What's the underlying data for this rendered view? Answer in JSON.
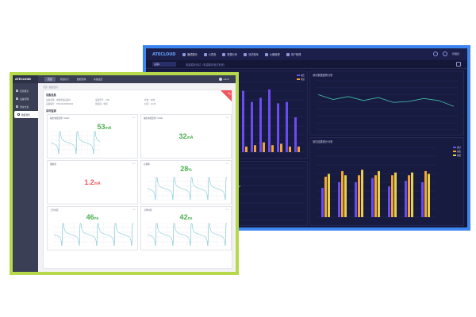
{
  "dark_window": {
    "app_logo": "ATECLOUD",
    "nav": [
      "测试执行",
      "仪表盘",
      "数据分析",
      "测试程序",
      "仪器管理",
      "用户管理"
    ],
    "user_label": "管理员",
    "device_select": "设备1",
    "title": "电源模块测试（电源模块测试系统）",
    "accent": "#3d86ef",
    "panels": {
      "bar": {
        "legend": [
          "电压",
          "电流"
        ]
      },
      "line": {
        "title": "测试数据趋势分析"
      },
      "grouped": {
        "title": "测试结果统计分析",
        "legend": [
          "通过",
          "失败",
          "总数"
        ]
      }
    }
  },
  "light_window": {
    "app_logo": "ATECLOUD",
    "frame_color": "#b6d94c",
    "sidebar_items": [
      "首页概览",
      "设备管理",
      "测试方案",
      "数据监控"
    ],
    "tabs": [
      "首页",
      "测试执行",
      "数据管理",
      "系统设置"
    ],
    "user_label": "admin",
    "breadcrumb": "首页 / 数据监控",
    "status_ribbon": "运行",
    "sections": {
      "info_title": "设备信息",
      "cards_title": "实时监测"
    },
    "info_rows": [
      [
        "设备名称：电源测试设备01",
        "设备型号：ATE",
        "状态：在线"
      ],
      [
        "设备编号：PSU20230815001",
        "测试项：电流",
        "时间：10:25"
      ]
    ],
    "cards": [
      {
        "title": "输出电流监测（CH1）",
        "tools": "□ ×",
        "value": "53",
        "unit": "mA",
        "color": "#4caf50",
        "chart": "wave"
      },
      {
        "title": "输出电流监测（CH2）",
        "tools": "□ ×",
        "value": "32",
        "unit": "mA",
        "color": "#4caf50",
        "chart": "none"
      },
      {
        "title": "漏电流",
        "tools": "□ ×",
        "value": "1.2",
        "unit": "mA",
        "color": "#f2545b",
        "chart": "none"
      },
      {
        "title": "负载率",
        "tools": "□ ×",
        "value": "28",
        "unit": "%",
        "color": "#4caf50",
        "chart": "wave"
      },
      {
        "title": "上升时间",
        "tools": "□ ×",
        "value": "46",
        "unit": "ns",
        "color": "#4caf50",
        "chart": "wave"
      },
      {
        "title": "下降时间",
        "tools": "□ ×",
        "value": "42",
        "unit": "ns",
        "color": "#4caf50",
        "chart": "wave"
      }
    ]
  }
}
